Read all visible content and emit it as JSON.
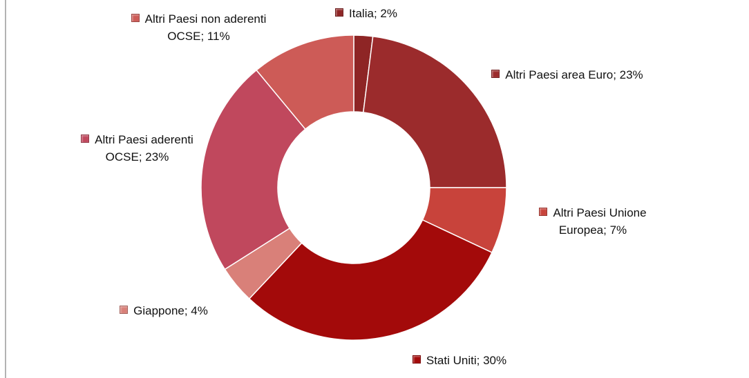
{
  "chart_data": {
    "type": "donut",
    "categories": [
      "Italia; 2%",
      "Altri Paesi area Euro; 23%",
      "Altri Paesi Unione Europea; 7%",
      "Stati Uniti; 30%",
      "Giappone; 4%",
      "Altri Paesi aderenti OCSE; 23%",
      "Altri Paesi non aderenti OCSE; 11%"
    ],
    "values": [
      2,
      23,
      7,
      30,
      4,
      23,
      11
    ],
    "colors": [
      "#8e2525",
      "#9b2b2c",
      "#c8433b",
      "#a30a0a",
      "#d98079",
      "#c0485d",
      "#cd5b57"
    ]
  }
}
